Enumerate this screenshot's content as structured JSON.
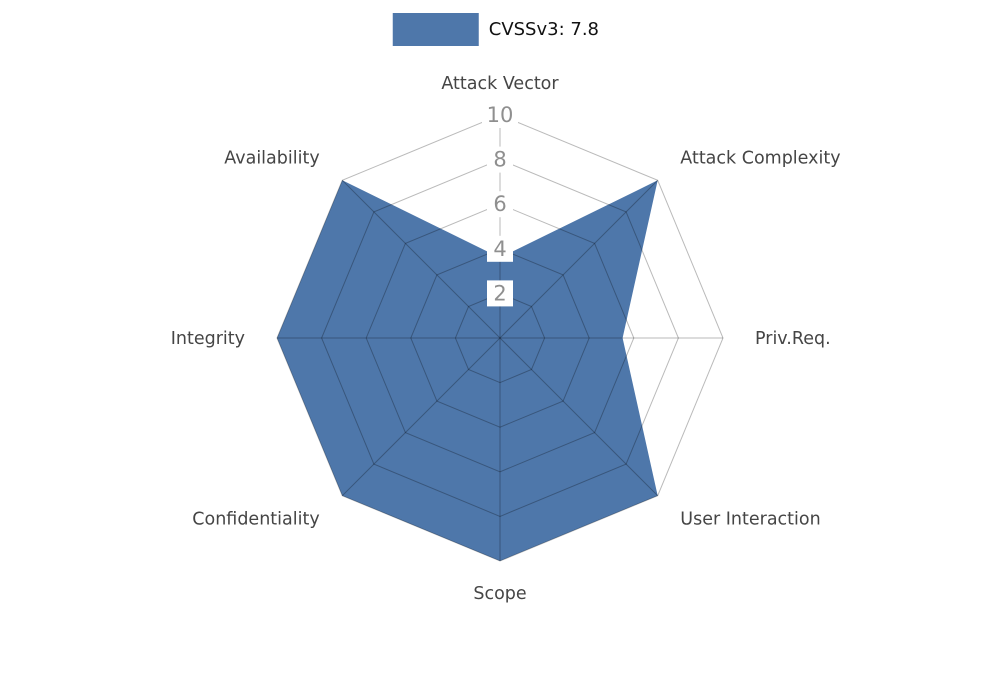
{
  "legend": {
    "label": "CVSSv3: 7.8",
    "swatch_color": "#4e77aa"
  },
  "chart_data": {
    "type": "radar",
    "title": "CVSSv3: 7.8",
    "categories": [
      "Attack Vector",
      "Attack Complexity",
      "Priv.Req.",
      "User Interaction",
      "Scope",
      "Confidentiality",
      "Integrity",
      "Availability"
    ],
    "series": [
      {
        "name": "CVSSv3: 7.8",
        "values": [
          3.6,
          10,
          5.5,
          10,
          10,
          10,
          10,
          10
        ],
        "fill_color": "#4e77aa"
      }
    ],
    "rlim": [
      0,
      10
    ],
    "rticks": [
      2,
      4,
      6,
      8,
      10
    ],
    "grid": "on",
    "grid_style": "web-polygon",
    "grid_color": "rgba(0,0,0,0.27)",
    "tick_box_color": "#ffffff",
    "tick_label_color": "#8f8f8f",
    "axis_label_color": "#454545",
    "legend_position": "top-center",
    "background_color": "#ffffff"
  }
}
